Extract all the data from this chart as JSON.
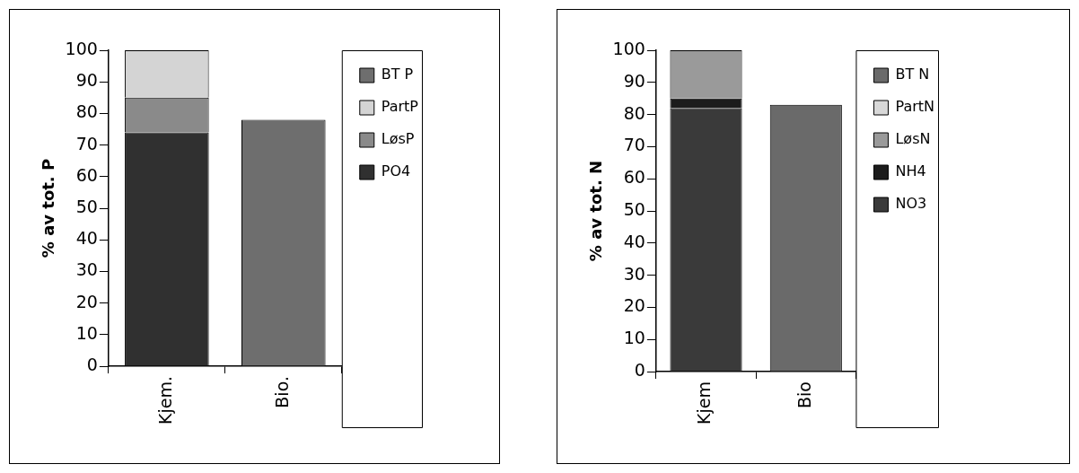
{
  "chart_data": [
    {
      "type": "bar",
      "stacked": true,
      "categories": [
        "Kjem.",
        "Bio."
      ],
      "ylabel": "% av tot. P",
      "ylim": [
        0,
        100
      ],
      "yticks": [
        0,
        10,
        20,
        30,
        40,
        50,
        60,
        70,
        80,
        90,
        100
      ],
      "grid": false,
      "legend": "right",
      "series": [
        {
          "name": "PO4",
          "color": "#303030",
          "values": [
            74,
            null
          ]
        },
        {
          "name": "LøsP",
          "color": "#8a8a8a",
          "values": [
            11,
            null
          ]
        },
        {
          "name": "PartP",
          "color": "#d4d4d4",
          "values": [
            15,
            null
          ]
        },
        {
          "name": "BT P",
          "color": "#6e6e6e",
          "values": [
            null,
            78
          ]
        }
      ]
    },
    {
      "type": "bar",
      "stacked": true,
      "categories": [
        "Kjem",
        "Bio"
      ],
      "ylabel": "% av tot. N",
      "ylim": [
        0,
        100
      ],
      "yticks": [
        0,
        10,
        20,
        30,
        40,
        50,
        60,
        70,
        80,
        90,
        100
      ],
      "grid": false,
      "legend": "right",
      "series": [
        {
          "name": "NO3",
          "color": "#3a3a3a",
          "values": [
            82,
            null
          ]
        },
        {
          "name": "NH4",
          "color": "#1c1c1c",
          "values": [
            3,
            null
          ]
        },
        {
          "name": "LøsN",
          "color": "#9a9a9a",
          "values": [
            15,
            null
          ]
        },
        {
          "name": "PartN",
          "color": "#d8d8d8",
          "values": [
            null,
            null
          ]
        },
        {
          "name": "BT N",
          "color": "#6a6a6a",
          "values": [
            null,
            83
          ]
        }
      ]
    }
  ]
}
